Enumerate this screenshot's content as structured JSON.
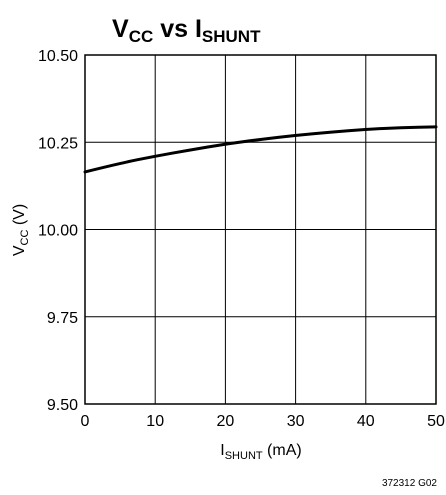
{
  "chart_data": {
    "type": "line",
    "title": {
      "main": "V",
      "main_sub": "CC",
      "mid": " vs I",
      "mid_sub": "SHUNT"
    },
    "xlabel": {
      "main": "I",
      "sub": "SHUNT",
      "unit": " (mA)"
    },
    "ylabel": {
      "main": "V",
      "sub": "CC",
      "unit": " (V)"
    },
    "xlim": [
      0,
      50
    ],
    "ylim": [
      9.5,
      10.5
    ],
    "x_ticks": [
      0,
      10,
      20,
      30,
      40,
      50
    ],
    "y_ticks": [
      9.5,
      9.75,
      10.0,
      10.25,
      10.5
    ],
    "x_tick_labels": [
      "0",
      "10",
      "20",
      "30",
      "40",
      "50"
    ],
    "y_tick_labels": [
      "9.50",
      "9.75",
      "10.00",
      "10.25",
      "10.50"
    ],
    "grid": true,
    "series": [
      {
        "x": [
          0,
          5,
          10,
          15,
          20,
          25,
          30,
          35,
          40,
          45,
          50
        ],
        "y": [
          10.165,
          10.19,
          10.21,
          10.228,
          10.245,
          10.258,
          10.27,
          10.279,
          10.287,
          10.292,
          10.294
        ]
      }
    ],
    "figure_code": "372312 G02",
    "line_color": "#000000",
    "grid_color": "#000000"
  }
}
